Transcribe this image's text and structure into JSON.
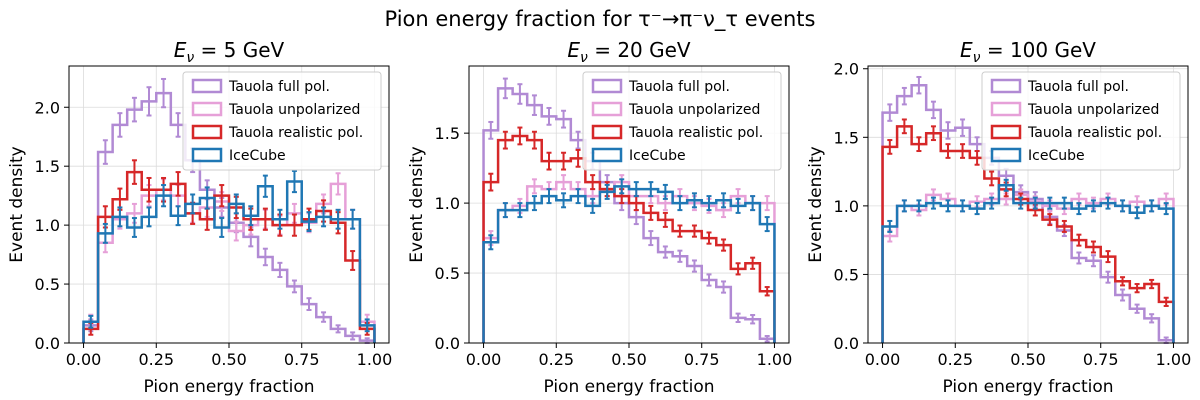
{
  "figure": {
    "suptitle": "Pion energy fraction for τ⁻→π⁻ν_τ events"
  },
  "colors": {
    "Tauola full pol.": "#b18ad4",
    "Tauola unpolarized": "#e6a0d8",
    "Tauola realistic pol.": "#d62728",
    "IceCube": "#1f77b4",
    "grid": "#dcdcdc",
    "frame": "#000000",
    "legend_border": "#cccccc"
  },
  "chart_data": [
    {
      "type": "histogram",
      "title": "E_ν = 5 GeV",
      "title_parts": [
        "E",
        "ν",
        " = 5 GeV"
      ],
      "xlabel": "Pion energy fraction",
      "ylabel": "Event density",
      "xlim": [
        -0.05,
        1.05
      ],
      "ylim": [
        0,
        2.35
      ],
      "xticks": [
        0,
        0.25,
        0.5,
        0.75,
        1
      ],
      "xtick_labels": [
        "0.00",
        "0.25",
        "0.50",
        "0.75",
        "1.00"
      ],
      "yticks": [
        0,
        0.5,
        1,
        1.5,
        2
      ],
      "ytick_labels": [
        "0.0",
        "0.5",
        "1.0",
        "1.5",
        "2.0"
      ],
      "grid": true,
      "legend_position": "top-right",
      "bin_edges": [
        0,
        0.05,
        0.1,
        0.15,
        0.2,
        0.25,
        0.3,
        0.35,
        0.4,
        0.45,
        0.5,
        0.55,
        0.6,
        0.65,
        0.7,
        0.75,
        0.8,
        0.85,
        0.9,
        0.95,
        1.0
      ],
      "series": [
        {
          "name": "Tauola full pol.",
          "values": [
            0.15,
            1.62,
            1.85,
            1.98,
            2.05,
            2.12,
            1.85,
            1.55,
            1.3,
            1.15,
            1.02,
            0.9,
            0.73,
            0.62,
            0.48,
            0.33,
            0.22,
            0.12,
            0.06,
            0.02
          ],
          "errors": [
            0.05,
            0.1,
            0.1,
            0.1,
            0.12,
            0.12,
            0.1,
            0.1,
            0.08,
            0.08,
            0.08,
            0.08,
            0.07,
            0.06,
            0.05,
            0.05,
            0.04,
            0.03,
            0.03,
            0.02
          ]
        },
        {
          "name": "Tauola unpolarized",
          "values": [
            0.18,
            0.85,
            1.05,
            1.1,
            1.25,
            1.3,
            1.25,
            1.1,
            1.15,
            1.2,
            0.95,
            1.0,
            1.05,
            1.0,
            1.1,
            1.02,
            1.18,
            1.35,
            1.05,
            0.18
          ],
          "errors": [
            0.06,
            0.08,
            0.08,
            0.08,
            0.09,
            0.09,
            0.09,
            0.08,
            0.08,
            0.08,
            0.08,
            0.08,
            0.08,
            0.08,
            0.08,
            0.08,
            0.08,
            0.09,
            0.08,
            0.06
          ]
        },
        {
          "name": "Tauola realistic pol.",
          "values": [
            0.12,
            1.07,
            1.22,
            1.45,
            1.3,
            1.3,
            1.35,
            1.1,
            1.05,
            1.25,
            1.15,
            1.05,
            1.05,
            1.0,
            1.0,
            1.05,
            1.12,
            1.02,
            0.7,
            0.12
          ],
          "errors": [
            0.05,
            0.09,
            0.09,
            0.1,
            0.1,
            0.1,
            0.1,
            0.09,
            0.09,
            0.09,
            0.09,
            0.09,
            0.09,
            0.09,
            0.09,
            0.09,
            0.09,
            0.09,
            0.08,
            0.05
          ]
        },
        {
          "name": "IceCube",
          "values": [
            0.18,
            0.93,
            1.07,
            0.98,
            1.07,
            1.25,
            1.08,
            1.18,
            1.23,
            0.98,
            1.18,
            1.08,
            1.33,
            1.05,
            1.37,
            1.03,
            1.07,
            1.05,
            1.05,
            0.15
          ],
          "errors": [
            0.05,
            0.08,
            0.08,
            0.08,
            0.08,
            0.09,
            0.08,
            0.08,
            0.09,
            0.08,
            0.08,
            0.08,
            0.09,
            0.08,
            0.09,
            0.08,
            0.08,
            0.08,
            0.08,
            0.05
          ]
        }
      ]
    },
    {
      "type": "histogram",
      "title": "E_ν = 20 GeV",
      "title_parts": [
        "E",
        "ν",
        " = 20 GeV"
      ],
      "xlabel": "Pion energy fraction",
      "ylabel": "Event density",
      "xlim": [
        -0.05,
        1.05
      ],
      "ylim": [
        0,
        1.98
      ],
      "xticks": [
        0,
        0.25,
        0.5,
        0.75,
        1
      ],
      "xtick_labels": [
        "0.00",
        "0.25",
        "0.50",
        "0.75",
        "1.00"
      ],
      "yticks": [
        0,
        0.5,
        1,
        1.5
      ],
      "ytick_labels": [
        "0.0",
        "0.5",
        "1.0",
        "1.5"
      ],
      "grid": true,
      "legend_position": "top-right",
      "bin_edges": [
        0,
        0.05,
        0.1,
        0.15,
        0.2,
        0.25,
        0.3,
        0.35,
        0.4,
        0.45,
        0.5,
        0.55,
        0.6,
        0.65,
        0.7,
        0.75,
        0.8,
        0.85,
        0.9,
        0.95,
        1.0
      ],
      "series": [
        {
          "name": "Tauola full pol.",
          "values": [
            1.52,
            1.82,
            1.78,
            1.7,
            1.62,
            1.6,
            1.45,
            1.3,
            1.15,
            1.0,
            0.9,
            0.75,
            0.65,
            0.62,
            0.55,
            0.45,
            0.4,
            0.18,
            0.17,
            0.03
          ],
          "errors": [
            0.06,
            0.07,
            0.07,
            0.07,
            0.06,
            0.06,
            0.06,
            0.06,
            0.05,
            0.05,
            0.05,
            0.05,
            0.04,
            0.04,
            0.04,
            0.04,
            0.04,
            0.03,
            0.03,
            0.02
          ]
        },
        {
          "name": "Tauola unpolarized",
          "values": [
            0.75,
            0.95,
            0.98,
            1.12,
            1.1,
            1.15,
            1.1,
            1.05,
            1.1,
            1.15,
            1.05,
            1.05,
            1.0,
            1.05,
            1.0,
            0.98,
            0.95,
            1.05,
            1.0,
            1.0
          ],
          "errors": [
            0.05,
            0.05,
            0.05,
            0.05,
            0.05,
            0.05,
            0.05,
            0.05,
            0.05,
            0.05,
            0.05,
            0.05,
            0.05,
            0.05,
            0.05,
            0.05,
            0.05,
            0.05,
            0.05,
            0.05
          ]
        },
        {
          "name": "Tauola realistic pol.",
          "values": [
            1.15,
            1.45,
            1.48,
            1.45,
            1.3,
            1.3,
            1.32,
            1.15,
            1.1,
            1.05,
            1.0,
            0.93,
            0.88,
            0.8,
            0.8,
            0.75,
            0.7,
            0.53,
            0.57,
            0.37
          ],
          "errors": [
            0.06,
            0.06,
            0.06,
            0.06,
            0.06,
            0.06,
            0.06,
            0.05,
            0.05,
            0.05,
            0.05,
            0.05,
            0.05,
            0.04,
            0.04,
            0.04,
            0.04,
            0.04,
            0.04,
            0.03
          ]
        },
        {
          "name": "IceCube",
          "values": [
            0.72,
            0.95,
            0.95,
            1.0,
            1.05,
            1.02,
            1.05,
            0.98,
            1.08,
            1.12,
            1.1,
            1.1,
            1.08,
            1.0,
            1.02,
            1.0,
            1.02,
            0.98,
            1.0,
            0.85
          ],
          "errors": [
            0.05,
            0.05,
            0.05,
            0.05,
            0.05,
            0.05,
            0.05,
            0.05,
            0.05,
            0.05,
            0.05,
            0.05,
            0.05,
            0.05,
            0.05,
            0.05,
            0.05,
            0.05,
            0.05,
            0.05
          ]
        }
      ]
    },
    {
      "type": "histogram",
      "title": "E_ν = 100 GeV",
      "title_parts": [
        "E",
        "ν",
        " = 100 GeV"
      ],
      "xlabel": "Pion energy fraction",
      "ylabel": "Event density",
      "xlim": [
        -0.05,
        1.05
      ],
      "ylim": [
        0,
        2.02
      ],
      "xticks": [
        0,
        0.25,
        0.5,
        0.75,
        1
      ],
      "xtick_labels": [
        "0.00",
        "0.25",
        "0.50",
        "0.75",
        "1.00"
      ],
      "yticks": [
        0,
        0.5,
        1,
        1.5,
        2
      ],
      "ytick_labels": [
        "0.0",
        "0.5",
        "1.0",
        "1.5",
        "2.0"
      ],
      "grid": true,
      "legend_position": "top-right",
      "bin_edges": [
        0,
        0.05,
        0.1,
        0.15,
        0.2,
        0.25,
        0.3,
        0.35,
        0.4,
        0.45,
        0.5,
        0.55,
        0.6,
        0.65,
        0.7,
        0.75,
        0.8,
        0.85,
        0.9,
        0.95,
        1.0
      ],
      "series": [
        {
          "name": "Tauola full pol.",
          "values": [
            1.68,
            1.8,
            1.88,
            1.7,
            1.55,
            1.57,
            1.45,
            1.35,
            1.22,
            1.1,
            1.05,
            0.92,
            0.82,
            0.62,
            0.6,
            0.48,
            0.35,
            0.25,
            0.18,
            0.02
          ],
          "errors": [
            0.06,
            0.06,
            0.06,
            0.06,
            0.06,
            0.06,
            0.05,
            0.05,
            0.05,
            0.05,
            0.05,
            0.05,
            0.04,
            0.04,
            0.04,
            0.04,
            0.04,
            0.03,
            0.03,
            0.02
          ]
        },
        {
          "name": "Tauola unpolarized",
          "values": [
            0.78,
            1.0,
            0.97,
            1.08,
            1.05,
            1.0,
            1.03,
            1.05,
            1.05,
            1.08,
            1.03,
            1.0,
            0.98,
            1.05,
            1.02,
            1.05,
            1.0,
            1.03,
            1.0,
            1.05
          ],
          "errors": [
            0.04,
            0.04,
            0.04,
            0.04,
            0.04,
            0.04,
            0.04,
            0.04,
            0.04,
            0.04,
            0.04,
            0.04,
            0.04,
            0.04,
            0.04,
            0.04,
            0.04,
            0.04,
            0.04,
            0.04
          ]
        },
        {
          "name": "Tauola realistic pol.",
          "values": [
            1.43,
            1.58,
            1.45,
            1.53,
            1.4,
            1.4,
            1.35,
            1.2,
            1.12,
            1.05,
            0.97,
            0.9,
            0.85,
            0.75,
            0.7,
            0.63,
            0.45,
            0.4,
            0.43,
            0.3
          ],
          "errors": [
            0.05,
            0.05,
            0.05,
            0.05,
            0.05,
            0.05,
            0.05,
            0.05,
            0.05,
            0.04,
            0.04,
            0.04,
            0.04,
            0.04,
            0.04,
            0.04,
            0.03,
            0.03,
            0.03,
            0.03
          ]
        },
        {
          "name": "IceCube",
          "values": [
            0.85,
            1.0,
            1.0,
            1.02,
            1.0,
            1.0,
            0.98,
            1.02,
            1.15,
            1.02,
            1.02,
            1.02,
            1.02,
            0.98,
            1.0,
            1.02,
            1.0,
            0.95,
            1.0,
            0.98
          ],
          "errors": [
            0.04,
            0.04,
            0.04,
            0.04,
            0.04,
            0.04,
            0.04,
            0.04,
            0.04,
            0.04,
            0.04,
            0.04,
            0.04,
            0.04,
            0.04,
            0.04,
            0.04,
            0.04,
            0.04,
            0.04
          ]
        }
      ]
    }
  ]
}
